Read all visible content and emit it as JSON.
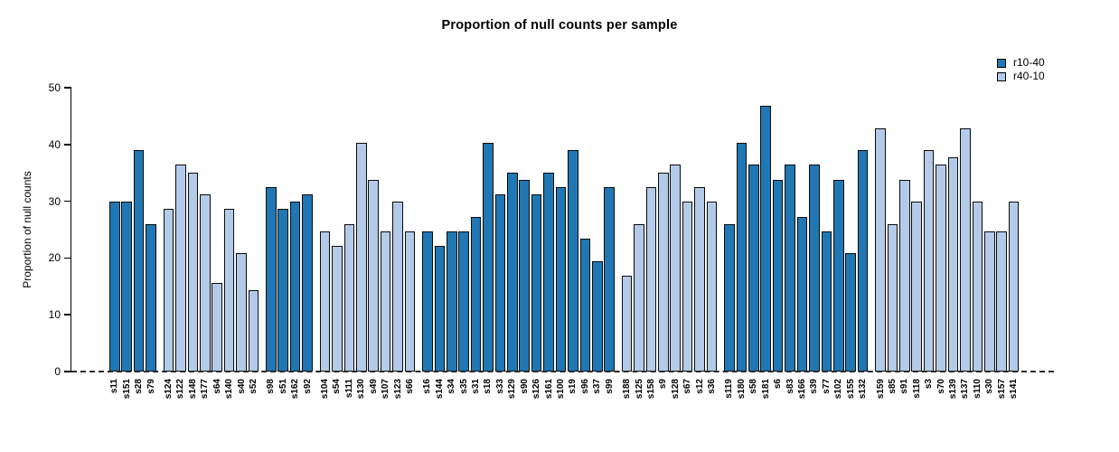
{
  "chart_data": {
    "type": "bar",
    "title": "Proportion of null counts per sample",
    "xlabel": "",
    "ylabel": "Proportion of null counts",
    "ylim": [
      0,
      50
    ],
    "yticks": [
      0,
      10,
      20,
      30,
      40,
      50
    ],
    "grid": false,
    "zero_line_style": "dashed",
    "legend_position": "top-right",
    "legend": [
      {
        "label": "r10-40",
        "color": "#2077b4"
      },
      {
        "label": "r40-10",
        "color": "#b3cbe8"
      }
    ],
    "bar_border_color": "#0b0b0b",
    "groups": [
      {
        "series": "r10-40",
        "bars": [
          {
            "label": "s11",
            "value": 29.9
          },
          {
            "label": "s151",
            "value": 29.9
          },
          {
            "label": "s28",
            "value": 39.0
          },
          {
            "label": "s79",
            "value": 26.0
          }
        ]
      },
      {
        "series": "r40-10",
        "bars": [
          {
            "label": "s124",
            "value": 28.6
          },
          {
            "label": "s122",
            "value": 36.4
          },
          {
            "label": "s148",
            "value": 35.1
          },
          {
            "label": "s177",
            "value": 31.2
          },
          {
            "label": "s64",
            "value": 15.6
          },
          {
            "label": "s140",
            "value": 28.6
          },
          {
            "label": "s40",
            "value": 20.8
          },
          {
            "label": "s52",
            "value": 14.3
          }
        ]
      },
      {
        "series": "r10-40",
        "bars": [
          {
            "label": "s98",
            "value": 32.5
          },
          {
            "label": "s51",
            "value": 28.6
          },
          {
            "label": "s162",
            "value": 29.9
          },
          {
            "label": "s92",
            "value": 31.2
          }
        ]
      },
      {
        "series": "r40-10",
        "bars": [
          {
            "label": "s104",
            "value": 24.7
          },
          {
            "label": "s54",
            "value": 22.1
          },
          {
            "label": "s111",
            "value": 26.0
          },
          {
            "label": "s130",
            "value": 40.3
          },
          {
            "label": "s49",
            "value": 33.8
          },
          {
            "label": "s107",
            "value": 24.7
          },
          {
            "label": "s123",
            "value": 29.9
          },
          {
            "label": "s66",
            "value": 24.7
          }
        ]
      },
      {
        "series": "r10-40",
        "bars": [
          {
            "label": "s16",
            "value": 24.7
          },
          {
            "label": "s144",
            "value": 22.1
          },
          {
            "label": "s34",
            "value": 24.7
          },
          {
            "label": "s35",
            "value": 24.7
          },
          {
            "label": "s31",
            "value": 27.3
          },
          {
            "label": "s18",
            "value": 40.3
          },
          {
            "label": "s33",
            "value": 31.2
          },
          {
            "label": "s129",
            "value": 35.1
          },
          {
            "label": "s90",
            "value": 33.8
          },
          {
            "label": "s126",
            "value": 31.2
          },
          {
            "label": "s161",
            "value": 35.1
          },
          {
            "label": "s100",
            "value": 32.5
          },
          {
            "label": "s19",
            "value": 39.0
          },
          {
            "label": "s96",
            "value": 23.4
          },
          {
            "label": "s37",
            "value": 19.5
          },
          {
            "label": "s99",
            "value": 32.5
          }
        ]
      },
      {
        "series": "r40-10",
        "bars": [
          {
            "label": "s188",
            "value": 16.9
          },
          {
            "label": "s125",
            "value": 26.0
          },
          {
            "label": "s158",
            "value": 32.5
          },
          {
            "label": "s9",
            "value": 35.1
          },
          {
            "label": "s128",
            "value": 36.4
          },
          {
            "label": "s67",
            "value": 29.9
          },
          {
            "label": "s12",
            "value": 32.5
          },
          {
            "label": "s36",
            "value": 29.9
          }
        ]
      },
      {
        "series": "r10-40",
        "bars": [
          {
            "label": "s119",
            "value": 26.0
          },
          {
            "label": "s180",
            "value": 40.3
          },
          {
            "label": "s58",
            "value": 36.4
          },
          {
            "label": "s181",
            "value": 46.8
          },
          {
            "label": "s6",
            "value": 33.8
          },
          {
            "label": "s83",
            "value": 36.4
          },
          {
            "label": "s166",
            "value": 27.3
          },
          {
            "label": "s39",
            "value": 36.4
          },
          {
            "label": "s77",
            "value": 24.7
          },
          {
            "label": "s102",
            "value": 33.8
          },
          {
            "label": "s155",
            "value": 20.8
          },
          {
            "label": "s132",
            "value": 39.0
          }
        ]
      },
      {
        "series": "r40-10",
        "bars": [
          {
            "label": "s159",
            "value": 42.9
          },
          {
            "label": "s85",
            "value": 26.0
          },
          {
            "label": "s91",
            "value": 33.8
          },
          {
            "label": "s118",
            "value": 29.9
          },
          {
            "label": "s3",
            "value": 39.0
          },
          {
            "label": "s70",
            "value": 36.4
          },
          {
            "label": "s139",
            "value": 37.7
          },
          {
            "label": "s137",
            "value": 42.9
          },
          {
            "label": "s110",
            "value": 29.9
          },
          {
            "label": "s30",
            "value": 24.7
          },
          {
            "label": "s157",
            "value": 24.7
          },
          {
            "label": "s141",
            "value": 29.9
          }
        ]
      }
    ]
  }
}
